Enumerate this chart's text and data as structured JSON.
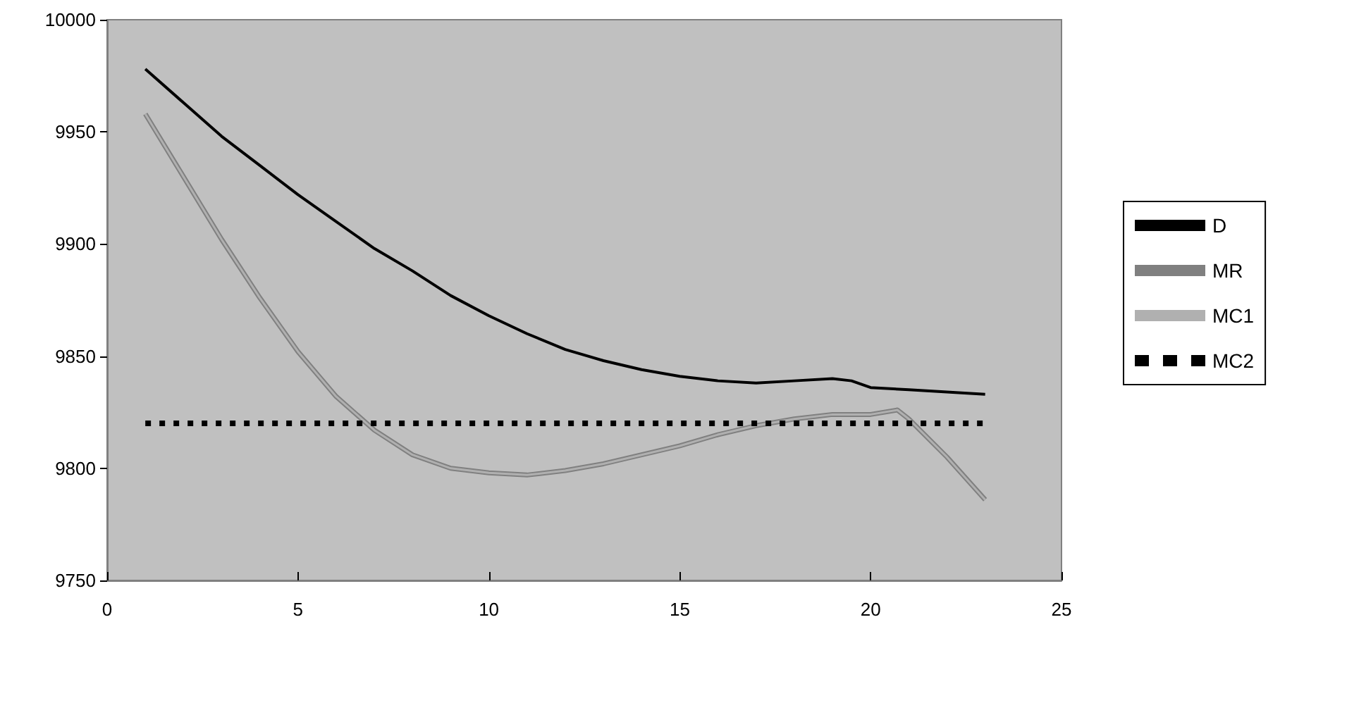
{
  "chart_data": {
    "type": "line",
    "xlim": [
      0,
      25
    ],
    "xticks": [
      0,
      5,
      10,
      15,
      20,
      25
    ],
    "ylim": [
      9750,
      10000
    ],
    "yticks": [
      9750,
      9800,
      9850,
      9900,
      9950,
      10000
    ],
    "grid": false,
    "legend": "right",
    "marker": "none",
    "series": [
      {
        "name": "D",
        "color": "#000000",
        "line_style": "solid",
        "x": [
          1,
          2,
          3,
          4,
          5,
          6,
          7,
          8,
          9,
          10,
          11,
          12,
          13,
          14,
          15,
          16,
          17,
          18,
          19,
          19.5,
          20,
          21,
          22,
          23
        ],
        "values": [
          9978,
          9963,
          9948,
          9935,
          9922,
          9910,
          9898,
          9888,
          9877,
          9868,
          9860,
          9853,
          9848,
          9844,
          9841,
          9839,
          9838,
          9839,
          9840,
          9839,
          9836,
          9835,
          9834,
          9833
        ]
      },
      {
        "name": "MR",
        "color": "#808080",
        "line_style": "solid",
        "x": [
          1,
          2,
          3,
          4,
          5,
          6,
          7,
          8,
          9,
          10,
          11,
          12,
          13,
          14,
          15,
          16,
          17,
          18,
          19,
          20,
          20.7,
          21,
          22,
          23
        ],
        "values": [
          9958,
          9930,
          9902,
          9876,
          9852,
          9832,
          9817,
          9806,
          9800,
          9798,
          9797,
          9799,
          9802,
          9806,
          9810,
          9815,
          9819,
          9822,
          9824,
          9824,
          9826,
          9822,
          9805,
          9786
        ]
      },
      {
        "name": "MC1",
        "color": "#b0b0b0",
        "line_style": "solid",
        "x": [
          1,
          2,
          3,
          4,
          5,
          6,
          7,
          8,
          9,
          10,
          11,
          12,
          13,
          14,
          15,
          16,
          17,
          18,
          19,
          20,
          20.7,
          21,
          22,
          23
        ],
        "values": [
          9958,
          9930,
          9902,
          9876,
          9852,
          9832,
          9817,
          9806,
          9800,
          9798,
          9797,
          9799,
          9802,
          9806,
          9810,
          9815,
          9819,
          9822,
          9824,
          9824,
          9826,
          9822,
          9805,
          9786
        ]
      },
      {
        "name": "MC2",
        "color": "#000000",
        "line_style": "dashed",
        "x": [
          1,
          23
        ],
        "values": [
          9820,
          9820
        ]
      }
    ]
  }
}
